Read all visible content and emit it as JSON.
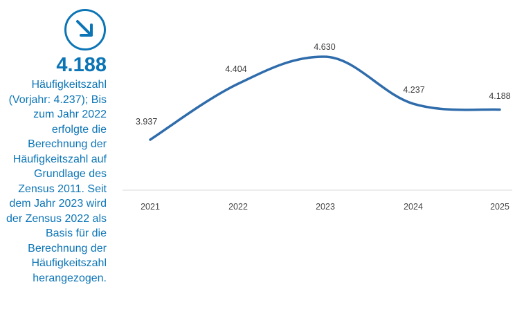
{
  "header": {
    "title_fragment": ""
  },
  "kpi": {
    "value": "4.188",
    "description": "Häufigkeitszahl (Vorjahr: 4.237); Bis zum Jahr 2022 erfolgte die Berechnung der Häufigkeitszahl auf Grundlage des Zensus 2011. Seit dem Jahr 2023 wird der Zensus 2022 als Basis für die Berechnung der Häufigkeitszahl herangezogen.",
    "icon": "arrow-down-right-icon",
    "accent_color": "#0c75b6"
  },
  "chart_data": {
    "type": "line",
    "categories": [
      "2021",
      "2022",
      "2023",
      "2024",
      "2025"
    ],
    "values": [
      3937,
      4404,
      4630,
      4237,
      4188
    ],
    "data_labels": [
      "3.937",
      "4.404",
      "4.630",
      "4.237",
      "4.188"
    ],
    "ylim": [
      3750,
      4660
    ],
    "line_color": "#2f6cab",
    "baseline_color": "#d8d8d8",
    "grid": false,
    "title": "",
    "xlabel": "",
    "ylabel": ""
  }
}
